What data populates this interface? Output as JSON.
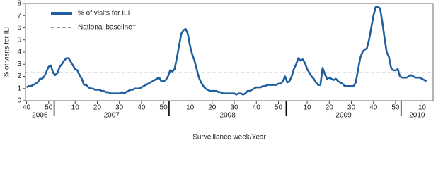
{
  "chart_data": {
    "type": "line",
    "y_label": "% of visits for ILI",
    "x_label": "Surveillance week/Year",
    "x": [
      0,
      1,
      2,
      3,
      4,
      5,
      6,
      7,
      8,
      9,
      10,
      11,
      12,
      13,
      14,
      15,
      16,
      17,
      18,
      19,
      20,
      21,
      22,
      23,
      24,
      25,
      26,
      27,
      28,
      29,
      30,
      31,
      32,
      33,
      34,
      35,
      36,
      37,
      38,
      39,
      40,
      41,
      42,
      43,
      44,
      45,
      46,
      47,
      48,
      49,
      50,
      51,
      52,
      53,
      54,
      55,
      56,
      57,
      58,
      59,
      60,
      61,
      62,
      63,
      64,
      65,
      66,
      67,
      68,
      69,
      70,
      71,
      72,
      73,
      74,
      75,
      76,
      77,
      78,
      79,
      80,
      81,
      82,
      83,
      84,
      85,
      86,
      87,
      88,
      89,
      90,
      91,
      92,
      93,
      94,
      95,
      96,
      97,
      98,
      99,
      100,
      101,
      102,
      103,
      104,
      105,
      106,
      107,
      108,
      109,
      110,
      111,
      112,
      113,
      114,
      115,
      116,
      117,
      118,
      119,
      120,
      121,
      122,
      123,
      124,
      125,
      126,
      127,
      128,
      129,
      130,
      131,
      132,
      133,
      134,
      135,
      136,
      137,
      138,
      139,
      140,
      141,
      142,
      143,
      144,
      145,
      146,
      147,
      148,
      149,
      150,
      151,
      152,
      153,
      154,
      155,
      156,
      157,
      158,
      159,
      160,
      161,
      162,
      163,
      164,
      165,
      166,
      167,
      168,
      169,
      170,
      171,
      172,
      173,
      174,
      175,
      176,
      177,
      178,
      179,
      180,
      181
    ],
    "series": [
      {
        "name": "% of visits for ILI",
        "color": "#1f5fa0",
        "values": [
          1.1,
          1.2,
          1.2,
          1.3,
          1.4,
          1.5,
          1.8,
          1.8,
          2.0,
          2.4,
          2.8,
          2.9,
          2.3,
          2.1,
          2.3,
          2.8,
          3.0,
          3.3,
          3.5,
          3.5,
          3.2,
          2.9,
          2.6,
          2.5,
          2.1,
          1.8,
          1.3,
          1.3,
          1.1,
          1.0,
          1.0,
          0.9,
          0.9,
          0.9,
          0.8,
          0.8,
          0.7,
          0.7,
          0.6,
          0.6,
          0.6,
          0.6,
          0.6,
          0.7,
          0.6,
          0.7,
          0.8,
          0.9,
          0.9,
          1.0,
          1.0,
          1.0,
          1.1,
          1.2,
          1.3,
          1.4,
          1.5,
          1.6,
          1.7,
          1.8,
          1.9,
          1.6,
          1.6,
          1.7,
          2.0,
          2.5,
          2.4,
          2.6,
          3.5,
          4.5,
          5.5,
          5.8,
          5.9,
          5.5,
          4.5,
          3.8,
          3.3,
          2.6,
          1.9,
          1.5,
          1.2,
          1.0,
          0.9,
          0.8,
          0.8,
          0.8,
          0.8,
          0.7,
          0.7,
          0.6,
          0.6,
          0.6,
          0.6,
          0.6,
          0.6,
          0.5,
          0.6,
          0.6,
          0.5,
          0.6,
          0.8,
          0.8,
          0.9,
          1.0,
          1.1,
          1.1,
          1.1,
          1.2,
          1.2,
          1.3,
          1.3,
          1.3,
          1.3,
          1.3,
          1.4,
          1.4,
          1.6,
          2.0,
          1.5,
          1.6,
          2.0,
          2.6,
          3.0,
          3.5,
          3.3,
          3.4,
          3.1,
          2.6,
          2.3,
          2.0,
          1.8,
          1.5,
          1.3,
          1.3,
          2.7,
          2.2,
          1.8,
          1.9,
          1.8,
          1.7,
          1.8,
          1.6,
          1.5,
          1.4,
          1.2,
          1.2,
          1.2,
          1.2,
          1.2,
          1.5,
          2.5,
          3.5,
          4.0,
          4.2,
          4.3,
          5.0,
          6.0,
          7.0,
          7.7,
          7.7,
          7.6,
          6.5,
          5.2,
          4.0,
          3.6,
          2.7,
          2.5,
          2.5,
          2.6,
          2.0,
          1.9,
          1.9,
          1.9,
          2.0,
          2.1,
          2.0,
          1.9,
          1.9,
          1.9,
          1.8,
          1.7,
          1.6
        ]
      }
    ],
    "baseline": {
      "name": "National baseline†",
      "value": 2.3
    },
    "xlim": [
      -0.5,
      184
    ],
    "xticks": [
      {
        "value": 0,
        "label": "40"
      },
      {
        "value": 10,
        "label": "50"
      },
      {
        "value": 22,
        "label": "10"
      },
      {
        "value": 32,
        "label": "20"
      },
      {
        "value": 42,
        "label": "30"
      },
      {
        "value": 52,
        "label": "40"
      },
      {
        "value": 62,
        "label": "50"
      },
      {
        "value": 74,
        "label": "10"
      },
      {
        "value": 84,
        "label": "20"
      },
      {
        "value": 94,
        "label": "30"
      },
      {
        "value": 104,
        "label": "40"
      },
      {
        "value": 114,
        "label": "50"
      },
      {
        "value": 127,
        "label": "10"
      },
      {
        "value": 137,
        "label": "20"
      },
      {
        "value": 147,
        "label": "30"
      },
      {
        "value": 157,
        "label": "40"
      },
      {
        "value": 167,
        "label": "50"
      },
      {
        "value": 179,
        "label": "10"
      }
    ],
    "year_dividers": [
      12.5,
      64.5,
      117.5,
      169.5
    ],
    "years": [
      "2006",
      "2007",
      "2008",
      "2009",
      "2010"
    ],
    "ylim": [
      0,
      8
    ],
    "yticks": [
      0,
      1,
      2,
      3,
      4,
      5,
      6,
      7,
      8
    ],
    "legend": "upper left"
  }
}
